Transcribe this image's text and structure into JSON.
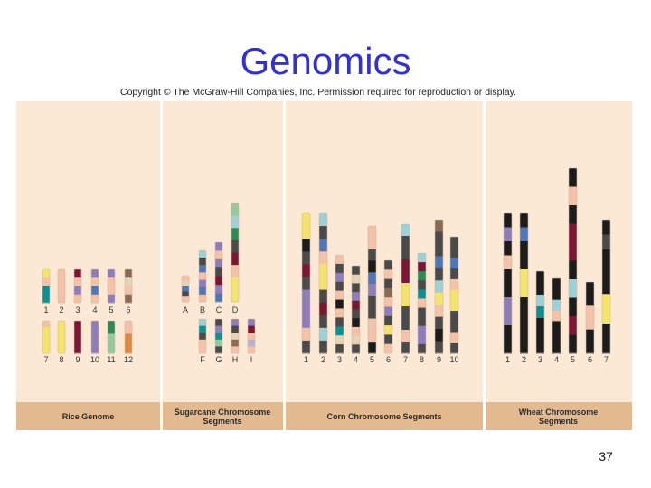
{
  "title": "Genomics",
  "copyright": "Copyright © The McGraw-Hill Companies, Inc. Permission required for reproduction or display.",
  "page_number": "37",
  "colors": {
    "title": "#3333cc",
    "background": "#fbe9d6",
    "label_band": "#e3b98f",
    "segments": {
      "k": "#1c1c1c",
      "g": "#4a4a4a",
      "t": "#0e8f94",
      "p": "#f3c2a8",
      "m": "#7a1735",
      "b": "#4f76b6",
      "l": "#8f7dba",
      "s": "#8a6a52",
      "y": "#f5e46c",
      "w": "#96c99a",
      "c": "#9ed0d8",
      "r": "#b7b2cc",
      "o": "#dd8a46",
      "gr": "#2f8a57",
      "n": "#e7d3b6"
    }
  },
  "panels": [
    {
      "label": "Rice Genome",
      "rows": [
        {
          "labels": [
            "1",
            "2",
            "3",
            "4",
            "5",
            "6"
          ]
        },
        {
          "labels": [
            "7",
            "8",
            "9",
            "10",
            "11",
            "12"
          ]
        }
      ]
    },
    {
      "label": "Sugarcane Chromosome Segments",
      "rows": [
        {
          "labels": [
            "A",
            "B",
            "C",
            "D"
          ]
        },
        {
          "labels": [
            "F",
            "G",
            "H",
            "I"
          ]
        }
      ]
    },
    {
      "label": "Corn Chromosome Segments",
      "rows": [
        {
          "labels": [
            "1",
            "2",
            "3",
            "4",
            "5",
            "6",
            "7",
            "8",
            "9",
            "10"
          ]
        }
      ]
    },
    {
      "label": "Wheat Chromosome Segments",
      "rows": [
        {
          "labels": [
            "1",
            "2",
            "3",
            "4",
            "5",
            "6",
            "7"
          ]
        }
      ]
    }
  ]
}
